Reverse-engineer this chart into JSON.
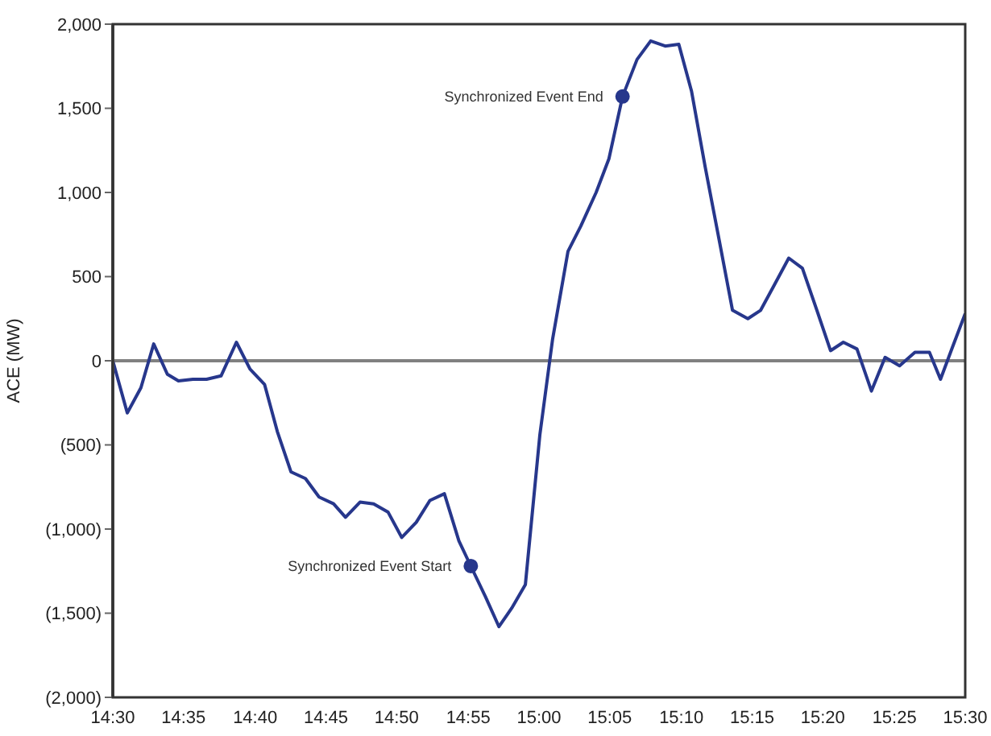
{
  "chart_data": {
    "type": "line",
    "ylabel": "ACE (MW)",
    "x": [
      14.5,
      14.517,
      14.533,
      14.548,
      14.564,
      14.577,
      14.594,
      14.61,
      14.627,
      14.645,
      14.661,
      14.678,
      14.693,
      14.709,
      14.726,
      14.742,
      14.759,
      14.773,
      14.79,
      14.806,
      14.823,
      14.839,
      14.856,
      14.872,
      14.889,
      14.906,
      14.92,
      14.937,
      14.953,
      14.968,
      14.984,
      15.001,
      15.016,
      15.034,
      15.049,
      15.067,
      15.082,
      15.098,
      15.115,
      15.131,
      15.148,
      15.164,
      15.179,
      15.195,
      15.212,
      15.227,
      15.245,
      15.26,
      15.276,
      15.293,
      15.309,
      15.326,
      15.342,
      15.357,
      15.373,
      15.39,
      15.406,
      15.423,
      15.441,
      15.458,
      15.471,
      15.485,
      15.5
    ],
    "series": [
      {
        "color": "#27378c",
        "values": [
          0,
          -310,
          -160,
          100,
          -80,
          -120,
          -110,
          -110,
          -90,
          110,
          -50,
          -140,
          -420,
          -660,
          -700,
          -810,
          -850,
          -930,
          -840,
          -850,
          -900,
          -1050,
          -960,
          -830,
          -790,
          -1070,
          -1220,
          -1400,
          -1580,
          -1470,
          -1330,
          -440,
          130,
          650,
          800,
          1000,
          1200,
          1570,
          1790,
          1900,
          1870,
          1880,
          1600,
          1150,
          700,
          300,
          250,
          300,
          450,
          610,
          550,
          300,
          60,
          110,
          70,
          -180,
          20,
          -30,
          50,
          50,
          -110,
          80,
          280
        ]
      }
    ],
    "xlim": [
      14.5,
      15.5
    ],
    "xticks": [
      {
        "value": 14.5,
        "label": "14:30"
      },
      {
        "value": 14.583,
        "label": "14:35"
      },
      {
        "value": 14.667,
        "label": "14:40"
      },
      {
        "value": 14.75,
        "label": "14:45"
      },
      {
        "value": 14.833,
        "label": "14:50"
      },
      {
        "value": 14.917,
        "label": "14:55"
      },
      {
        "value": 15,
        "label": "15:00"
      },
      {
        "value": 15.083,
        "label": "15:05"
      },
      {
        "value": 15.167,
        "label": "15:10"
      },
      {
        "value": 15.25,
        "label": "15:15"
      },
      {
        "value": 15.333,
        "label": "15:20"
      },
      {
        "value": 15.417,
        "label": "15:25"
      },
      {
        "value": 15.5,
        "label": "15:30"
      }
    ],
    "ylim": [
      -2000,
      2000
    ],
    "yticks": [
      {
        "value": -2000,
        "label": "(2,000)"
      },
      {
        "value": -1500,
        "label": "(1,500)"
      },
      {
        "value": -1000,
        "label": "(1,000)"
      },
      {
        "value": -500,
        "label": "(500)"
      },
      {
        "value": 0,
        "label": "0"
      },
      {
        "value": 500,
        "label": "500"
      },
      {
        "value": 1000,
        "label": "1,000"
      },
      {
        "value": 1500,
        "label": "1,500"
      },
      {
        "value": 2000,
        "label": "2,000"
      }
    ],
    "ref_lines": [
      {
        "axis": "y",
        "value": 0,
        "color": "#808080"
      }
    ],
    "annotations": [
      {
        "text": "Synchronized Event Start",
        "x": 14.92,
        "y": -1220
      },
      {
        "text": "Synchronized Event End",
        "x": 15.098,
        "y": 1570
      }
    ],
    "grid": false,
    "marker": "none",
    "line_style": "solid"
  }
}
